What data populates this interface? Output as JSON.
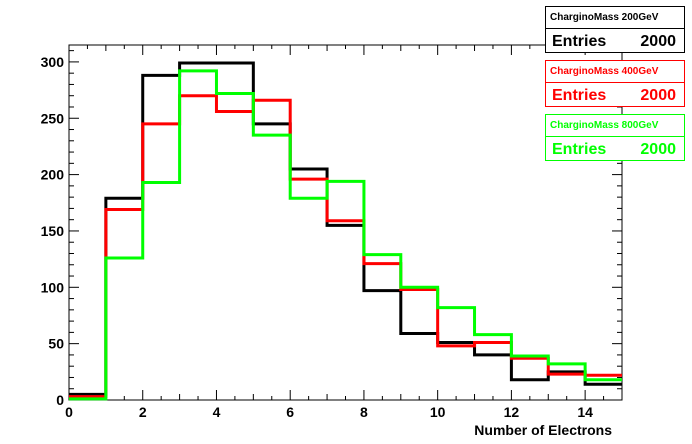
{
  "chart_data": {
    "type": "histogram-step",
    "xlabel": "Number of Electrons",
    "ylabel": "",
    "xlim": [
      0,
      15
    ],
    "ylim": [
      0,
      315
    ],
    "x_ticks": [
      0,
      2,
      4,
      6,
      8,
      10,
      12,
      14
    ],
    "y_ticks": [
      0,
      50,
      100,
      150,
      200,
      250,
      300
    ],
    "bin_edges": [
      0,
      1,
      2,
      3,
      4,
      5,
      6,
      7,
      8,
      9,
      10,
      11,
      12,
      13,
      14,
      15
    ],
    "series": [
      {
        "name": "CharginoMass 200GeV",
        "color": "#000000",
        "entries": "2000",
        "values": [
          5,
          179,
          288,
          299,
          299,
          245,
          205,
          155,
          97,
          59,
          51,
          40,
          18,
          25,
          14
        ]
      },
      {
        "name": "CharginoMass 400GeV",
        "color": "#ff0000",
        "entries": "2000",
        "values": [
          3,
          169,
          245,
          270,
          256,
          266,
          196,
          159,
          121,
          98,
          48,
          51,
          37,
          23,
          22
        ]
      },
      {
        "name": "CharginoMass 800GeV",
        "color": "#00ff00",
        "entries": "2000",
        "values": [
          1,
          126,
          193,
          292,
          272,
          235,
          179,
          194,
          129,
          100,
          82,
          58,
          39,
          32,
          18
        ]
      }
    ]
  },
  "stats_boxes": [
    {
      "title": "CharginoMass 200GeV",
      "entries_label": "Entries",
      "entries": "2000",
      "color": "#000000"
    },
    {
      "title": "CharginoMass 400GeV",
      "entries_label": "Entries",
      "entries": "2000",
      "color": "#ff0000"
    },
    {
      "title": "CharginoMass 800GeV",
      "entries_label": "Entries",
      "entries": "2000",
      "color": "#00ff00"
    }
  ]
}
